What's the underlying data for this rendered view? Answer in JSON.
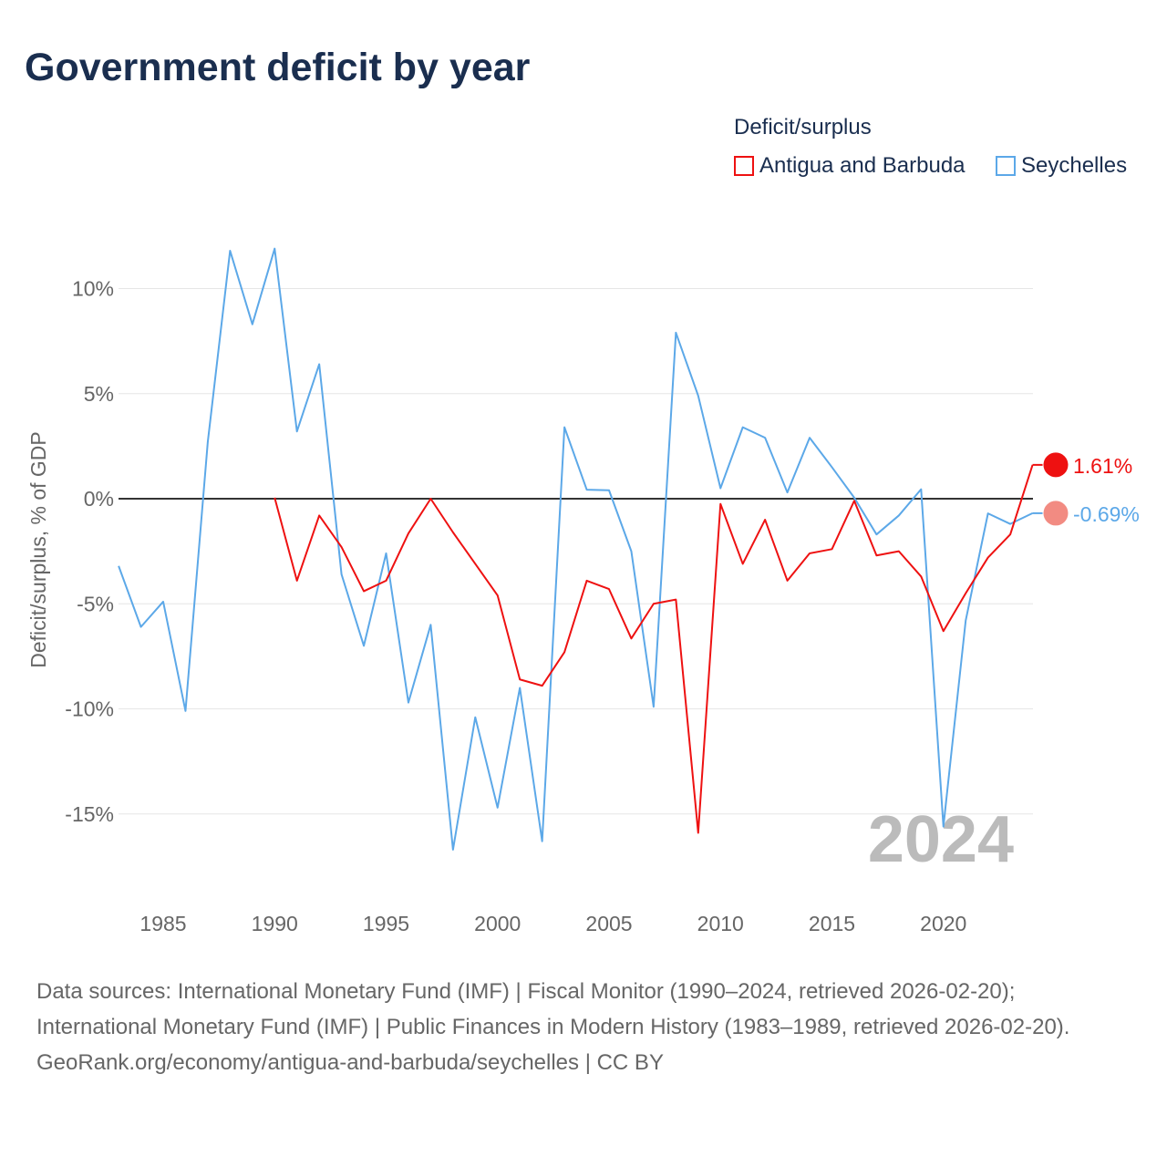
{
  "title": "Government deficit by year",
  "legend": {
    "title": "Deficit/surplus",
    "items": [
      "Antigua and Barbuda",
      "Seychelles"
    ]
  },
  "colors": {
    "Antigua and Barbuda": "#ee1111",
    "Seychelles": "#5ca8e8"
  },
  "footer": {
    "sources": "Data sources: International Monetary Fund (IMF) | Fiscal Monitor (1990–2024, retrieved 2026-02-20); International Monetary Fund (IMF) | Public Finances in Modern History (1983–1989, retrieved 2026-02-20).",
    "credit": "GeoRank.org/economy/antigua-and-barbuda/seychelles | CC BY"
  },
  "chart_data": {
    "type": "line",
    "title": "Government deficit by year",
    "ylabel": "Deficit/surplus, % of GDP",
    "xlabel": "",
    "year_watermark": "2024",
    "xlim": [
      1983,
      2024
    ],
    "ylim": [
      -19,
      13
    ],
    "xticks": [
      1985,
      1990,
      1995,
      2000,
      2005,
      2010,
      2015,
      2020
    ],
    "yticks": [
      {
        "v": 10,
        "label": "10%"
      },
      {
        "v": 5,
        "label": "5%"
      },
      {
        "v": 0,
        "label": "0%"
      },
      {
        "v": -5,
        "label": "-5%"
      },
      {
        "v": -10,
        "label": "-10%"
      },
      {
        "v": -15,
        "label": "-15%"
      }
    ],
    "series": [
      {
        "name": "Seychelles",
        "end_label": "-0.69%",
        "start": 1983,
        "values": [
          -3.2,
          -6.1,
          -4.9,
          -10.1,
          2.7,
          11.8,
          8.3,
          11.9,
          3.2,
          6.4,
          -3.6,
          -7.0,
          -2.6,
          -9.7,
          -6.0,
          -16.7,
          -10.4,
          -14.7,
          -9.0,
          -16.3,
          3.4,
          0.43,
          0.4,
          -2.5,
          -9.9,
          7.9,
          4.9,
          0.5,
          3.4,
          2.9,
          0.3,
          2.9,
          1.5,
          0.05,
          -1.7,
          -0.8,
          0.45,
          -15.6,
          -5.8,
          -0.7,
          -1.2,
          -0.69
        ]
      },
      {
        "name": "Antigua and Barbuda",
        "end_label": "1.61%",
        "start": 1990,
        "values": [
          0.05,
          -3.9,
          -0.8,
          -2.3,
          -4.4,
          -3.9,
          -1.65,
          0,
          -1.6,
          -3.1,
          -4.6,
          -8.6,
          -8.9,
          -7.3,
          -3.9,
          -4.3,
          -6.65,
          -5.0,
          -4.8,
          -15.9,
          -0.25,
          -3.1,
          -1.0,
          -3.9,
          -2.6,
          -2.4,
          -0.1,
          -2.7,
          -2.5,
          -3.7,
          -6.3,
          -4.5,
          -2.8,
          -1.7,
          1.61
        ]
      }
    ]
  }
}
